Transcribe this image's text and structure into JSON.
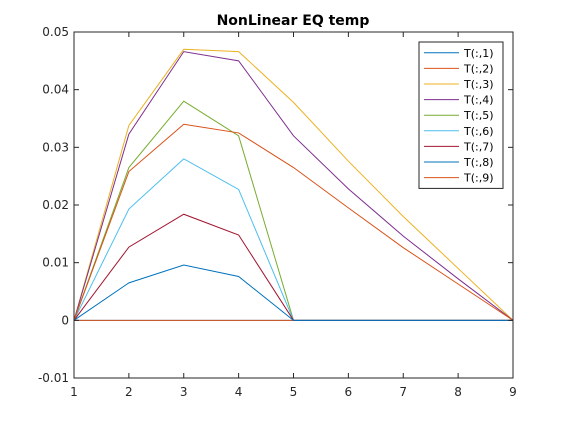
{
  "chart_data": {
    "type": "line",
    "title": "NonLinear EQ temp",
    "xlabel": "",
    "ylabel": "",
    "x": [
      1,
      2,
      3,
      4,
      5,
      6,
      7,
      8,
      9
    ],
    "xlim": [
      1,
      9
    ],
    "ylim": [
      -0.01,
      0.05
    ],
    "xticks": [
      1,
      2,
      3,
      4,
      5,
      6,
      7,
      8,
      9
    ],
    "yticks": [
      -0.01,
      0,
      0.01,
      0.02,
      0.03,
      0.04,
      0.05
    ],
    "ytick_labels": [
      "-0.01",
      "0",
      "0.01",
      "0.02",
      "0.03",
      "0.04",
      "0.05"
    ],
    "grid": false,
    "legend_position": "top-right",
    "series": [
      {
        "name": "T(:,1)",
        "color": "#0072BD",
        "values": [
          0,
          0,
          0,
          0,
          0,
          0,
          0,
          0,
          0
        ]
      },
      {
        "name": "T(:,2)",
        "color": "#D95319",
        "values": [
          0,
          0,
          0,
          0,
          0,
          0,
          0,
          0,
          0
        ]
      },
      {
        "name": "T(:,3)",
        "color": "#EDB120",
        "values": [
          0,
          0.0338,
          0.047,
          0.0466,
          0.0378,
          0.0276,
          0.018,
          0.009,
          0
        ]
      },
      {
        "name": "T(:,4)",
        "color": "#7E2F8E",
        "values": [
          0,
          0.0323,
          0.0466,
          0.045,
          0.032,
          0.0228,
          0.0146,
          0.0072,
          0
        ]
      },
      {
        "name": "T(:,5)",
        "color": "#77AC30",
        "values": [
          0,
          0.0265,
          0.038,
          0.032,
          0,
          0,
          0,
          0,
          0
        ]
      },
      {
        "name": "T(:,6)",
        "color": "#4DBEEE",
        "values": [
          0,
          0.0193,
          0.028,
          0.0227,
          0,
          0,
          0,
          0,
          0
        ]
      },
      {
        "name": "T(:,7)",
        "color": "#A2142F",
        "values": [
          0,
          0.0127,
          0.0184,
          0.0148,
          0,
          0,
          0,
          0,
          0
        ]
      },
      {
        "name": "T(:,8)",
        "color": "#0072BD",
        "values": [
          0,
          0.0065,
          0.0096,
          0.0076,
          0,
          0,
          0,
          0,
          0
        ]
      },
      {
        "name": "T(:,9)",
        "color": "#D95319",
        "values": [
          0,
          0.0258,
          0.034,
          0.0325,
          0.0265,
          0.0195,
          0.0126,
          0.0063,
          0
        ]
      }
    ]
  }
}
